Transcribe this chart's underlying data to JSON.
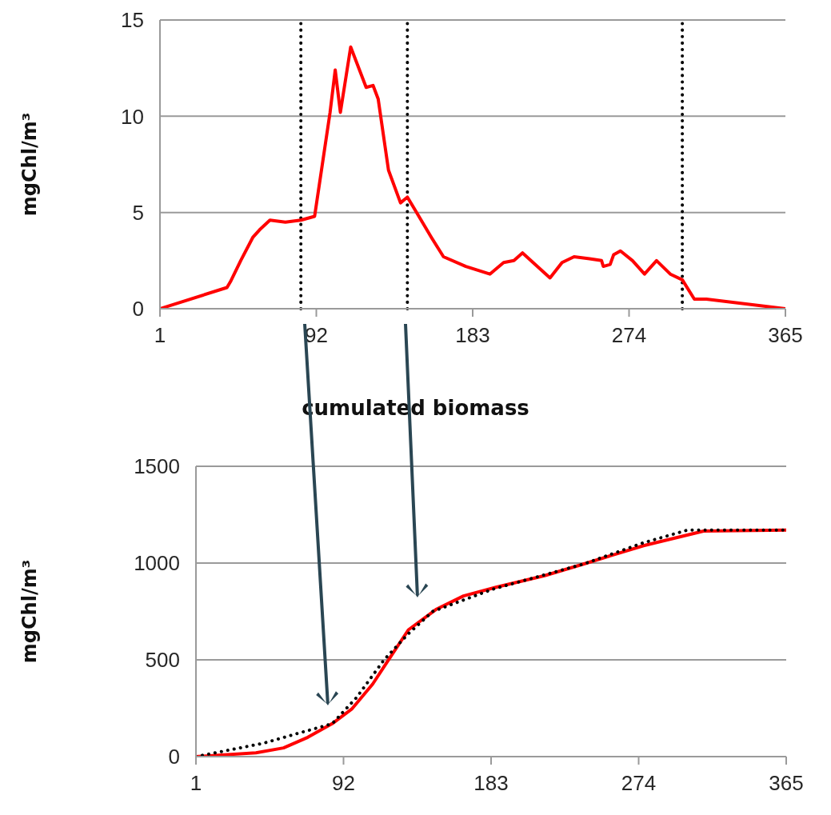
{
  "chart_data": [
    {
      "type": "line",
      "ylabel": "mgChl/m³",
      "xlim": [
        1,
        365
      ],
      "xticks": [
        1,
        92,
        183,
        274,
        365
      ],
      "ylim": [
        0,
        15
      ],
      "yticks": [
        0,
        5,
        10,
        15
      ],
      "grid": "y",
      "marker": "none",
      "series": [
        {
          "color": "#ff0000",
          "line_style": "solid",
          "x": [
            1,
            40,
            42,
            48,
            55,
            59,
            65,
            74,
            83,
            91,
            100,
            103,
            106,
            112,
            121,
            125,
            128,
            134,
            141,
            145,
            151,
            159,
            166,
            179,
            193,
            201,
            207,
            212,
            228,
            235,
            242,
            251,
            258,
            259,
            263,
            265,
            269,
            276,
            283,
            290,
            298,
            305,
            312,
            319,
            365
          ],
          "values": [
            0,
            1.1,
            1.4,
            2.5,
            3.7,
            4.1,
            4.6,
            4.5,
            4.6,
            4.8,
            10.2,
            12.4,
            10.2,
            13.6,
            11.5,
            11.6,
            10.9,
            7.2,
            5.5,
            5.8,
            4.9,
            3.7,
            2.7,
            2.2,
            1.8,
            2.4,
            2.5,
            2.9,
            1.6,
            2.4,
            2.7,
            2.6,
            2.5,
            2.2,
            2.3,
            2.8,
            3,
            2.5,
            1.8,
            2.5,
            1.8,
            1.5,
            0.5,
            0.5,
            0
          ]
        }
      ],
      "ref_lines": [
        {
          "axis": "x",
          "value": 83,
          "color": "#000000",
          "line_style": "dotted"
        },
        {
          "axis": "x",
          "value": 145,
          "color": "#000000",
          "line_style": "dotted"
        },
        {
          "axis": "x",
          "value": 305,
          "color": "#000000",
          "line_style": "dotted"
        }
      ]
    },
    {
      "type": "line",
      "title": "cumulated biomass",
      "ylabel": "mgChl/m³",
      "xlim": [
        1,
        365
      ],
      "xticks": [
        1,
        92,
        183,
        274,
        365
      ],
      "ylim": [
        0,
        1500
      ],
      "yticks": [
        0,
        500,
        1000,
        1500
      ],
      "grid": "y",
      "marker": "none",
      "series": [
        {
          "color": "#ff0000",
          "line_style": "solid",
          "x": [
            1,
            38,
            55,
            70,
            85,
            97,
            110,
            119,
            132,
            149,
            166,
            186,
            216,
            240,
            277,
            309,
            314,
            365
          ],
          "values": [
            0,
            20,
            45,
            100,
            170,
            245,
            375,
            490,
            655,
            760,
            830,
            875,
            935,
            995,
            1090,
            1155,
            1165,
            1170
          ]
        },
        {
          "color": "#000000",
          "line_style": "dotted",
          "x": [
            1,
            13,
            43,
            68,
            85,
            100,
            117,
            132,
            147,
            184,
            240,
            277,
            304,
            365
          ],
          "values": [
            0,
            20,
            70,
            130,
            170,
            305,
            500,
            635,
            750,
            865,
            995,
            1105,
            1170,
            1170
          ]
        }
      ]
    }
  ]
}
